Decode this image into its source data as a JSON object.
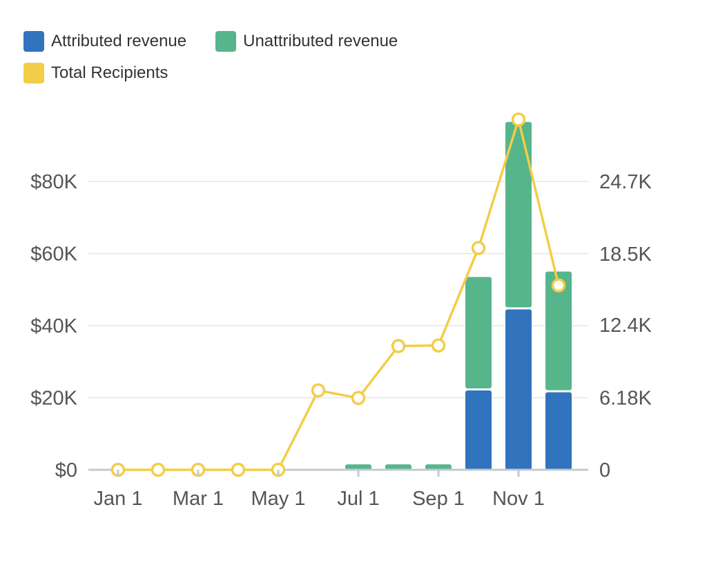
{
  "chart_data": {
    "type": "bar",
    "title": "",
    "xlabel": "",
    "ylabel": "",
    "y2label": "",
    "legend": [
      {
        "name": "Attributed revenue",
        "color": "#3173bd"
      },
      {
        "name": "Unattributed revenue",
        "color": "#56b58b"
      },
      {
        "name": "Total Recipients",
        "color": "#f2cd47"
      }
    ],
    "legend_position": "top-left",
    "grid": true,
    "categories": [
      "Jan 1",
      "Feb 1",
      "Mar 1",
      "Apr 1",
      "May 1",
      "Jun 1",
      "Jul 1",
      "Aug 1",
      "Sep 1",
      "Oct 1",
      "Nov 1",
      "Dec 1"
    ],
    "x_tick_labels": [
      "Jan 1",
      "Mar 1",
      "May 1",
      "Jul 1",
      "Sep 1",
      "Nov 1"
    ],
    "series": [
      {
        "name": "Attributed revenue",
        "type": "stacked-bar",
        "axis": "left",
        "color": "#3173bd",
        "values": [
          0,
          0,
          0,
          0,
          0,
          0,
          0,
          0,
          0,
          22000,
          44500,
          21500
        ]
      },
      {
        "name": "Unattributed revenue",
        "type": "stacked-bar",
        "axis": "left",
        "color": "#56b58b",
        "values": [
          0,
          0,
          0,
          0,
          0,
          0,
          1500,
          1500,
          1500,
          31500,
          52000,
          33500
        ]
      },
      {
        "name": "Total Recipients",
        "type": "line",
        "axis": "right",
        "color": "#f2cd47",
        "values": [
          0,
          0,
          0,
          0,
          0,
          6800,
          6150,
          10600,
          10650,
          19000,
          30000,
          15800
        ]
      }
    ],
    "y_left": {
      "ticks": [
        0,
        20000,
        40000,
        60000,
        80000
      ],
      "tick_labels": [
        "$0",
        "$20K",
        "$40K",
        "$60K",
        "$80K"
      ],
      "range": [
        0,
        100000
      ]
    },
    "y_right": {
      "ticks": [
        0,
        6180,
        12400,
        18500,
        24700
      ],
      "tick_labels": [
        "0",
        "6.18K",
        "12.4K",
        "18.5K",
        "24.7K"
      ],
      "range": [
        0,
        30875
      ]
    }
  }
}
